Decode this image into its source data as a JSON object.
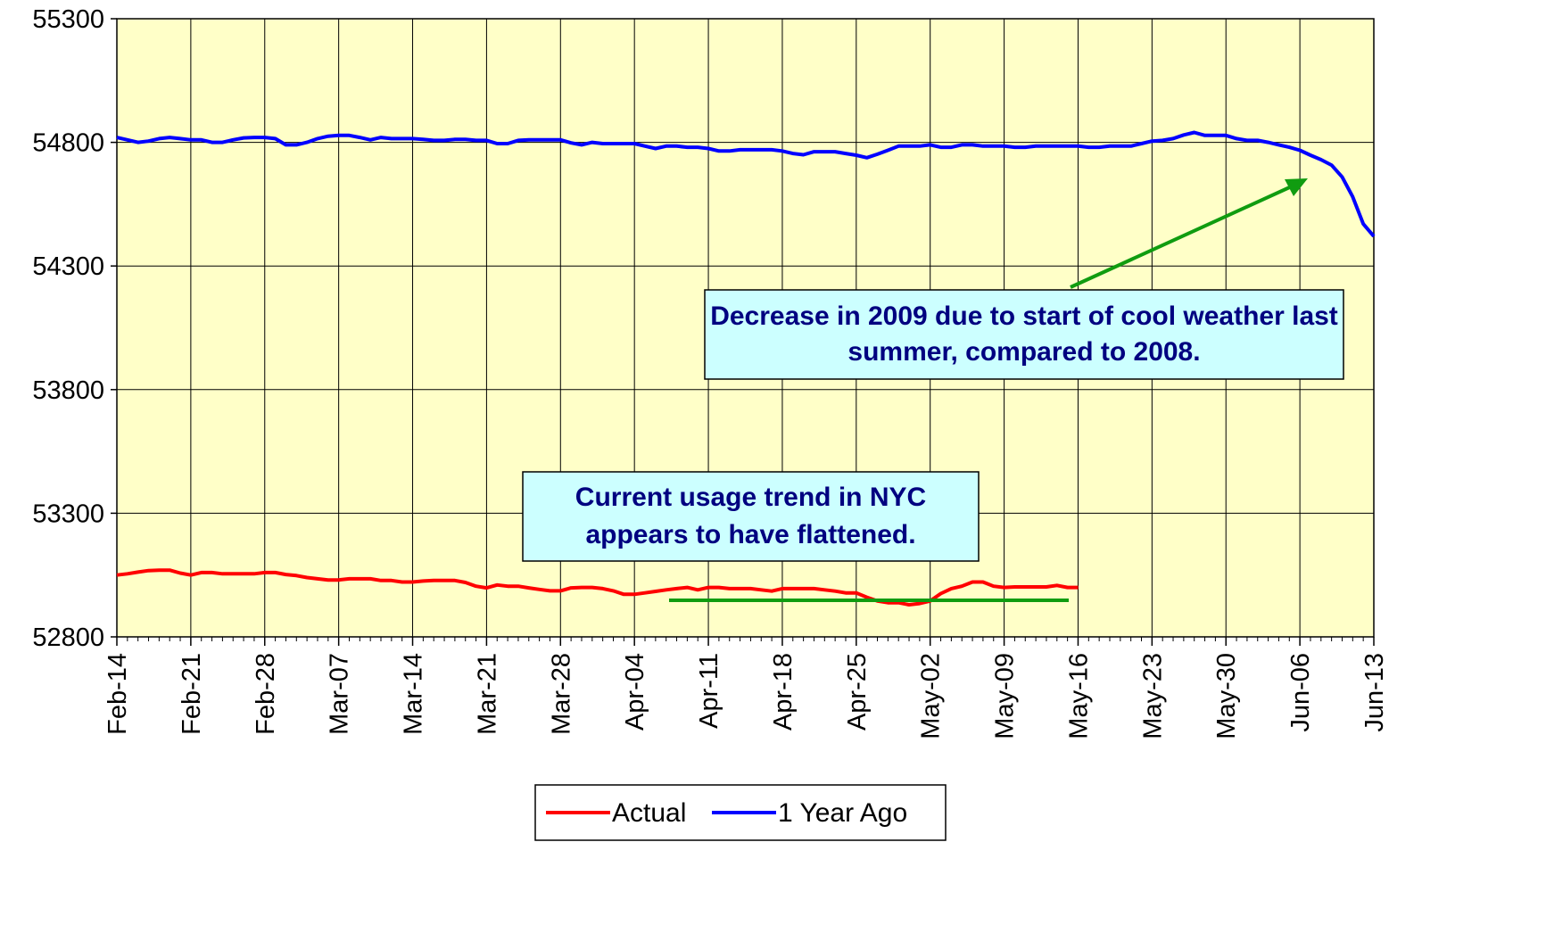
{
  "chart_data": {
    "type": "line",
    "categories": [
      "Feb-14",
      null,
      null,
      null,
      null,
      null,
      null,
      "Feb-21",
      null,
      null,
      null,
      null,
      null,
      null,
      "Feb-28",
      null,
      null,
      null,
      null,
      null,
      null,
      "Mar-07",
      null,
      null,
      null,
      null,
      null,
      null,
      "Mar-14",
      null,
      null,
      null,
      null,
      null,
      null,
      "Mar-21",
      null,
      null,
      null,
      null,
      null,
      null,
      "Mar-28",
      null,
      null,
      null,
      null,
      null,
      null,
      "Apr-04",
      null,
      null,
      null,
      null,
      null,
      null,
      "Apr-11",
      null,
      null,
      null,
      null,
      null,
      null,
      "Apr-18",
      null,
      null,
      null,
      null,
      null,
      null,
      "Apr-25",
      null,
      null,
      null,
      null,
      null,
      null,
      "May-02",
      null,
      null,
      null,
      null,
      null,
      null,
      "May-09",
      null,
      null,
      null,
      null,
      null,
      null,
      "May-16",
      null,
      null,
      null,
      null,
      null,
      null,
      "May-23",
      null,
      null,
      null,
      null,
      null,
      null,
      "May-30",
      null,
      null,
      null,
      null,
      null,
      null,
      "Jun-06",
      null,
      null,
      null,
      null,
      null,
      null,
      "Jun-13"
    ],
    "series": [
      {
        "name": "Actual",
        "color": "#ff0000",
        "values": [
          53050,
          53055,
          53062,
          53068,
          53070,
          53070,
          53058,
          53050,
          53060,
          53060,
          53055,
          53055,
          53055,
          53055,
          53060,
          53060,
          53052,
          53048,
          53040,
          53035,
          53030,
          53030,
          53035,
          53035,
          53035,
          53028,
          53028,
          53022,
          53022,
          53026,
          53028,
          53028,
          53028,
          53020,
          53005,
          52998,
          53010,
          53005,
          53005,
          52998,
          52992,
          52986,
          52986,
          52998,
          53000,
          53000,
          52995,
          52986,
          52972,
          52972,
          52978,
          52984,
          52990,
          52995,
          53000,
          52990,
          53000,
          53000,
          52995,
          52995,
          52995,
          52990,
          52985,
          52995,
          52995,
          52995,
          52995,
          52990,
          52985,
          52978,
          52978,
          52960,
          52945,
          52938,
          52938,
          52930,
          52935,
          52945,
          52975,
          52995,
          53005,
          53022,
          53022,
          53005,
          53000,
          53002,
          53002,
          53002,
          53002,
          53008,
          53000,
          53000,
          null,
          null,
          null,
          null,
          null,
          null,
          null,
          null,
          null,
          null,
          null,
          null,
          null,
          null,
          null,
          null,
          null,
          null,
          null,
          null,
          null,
          null,
          null,
          null,
          null,
          null,
          null,
          null
        ]
      },
      {
        "name": "1 Year Ago",
        "color": "#0000ff",
        "values": [
          54820,
          54810,
          54800,
          54805,
          54815,
          54820,
          54815,
          54810,
          54810,
          54800,
          54800,
          54810,
          54818,
          54820,
          54820,
          54815,
          54790,
          54790,
          54800,
          54815,
          54825,
          54828,
          54828,
          54820,
          54810,
          54820,
          54815,
          54815,
          54815,
          54812,
          54808,
          54808,
          54812,
          54812,
          54808,
          54808,
          54795,
          54795,
          54808,
          54810,
          54810,
          54810,
          54810,
          54798,
          54790,
          54800,
          54795,
          54795,
          54795,
          54795,
          54785,
          54775,
          54785,
          54785,
          54780,
          54780,
          54775,
          54765,
          54765,
          54770,
          54770,
          54770,
          54770,
          54765,
          54755,
          54750,
          54762,
          54762,
          54762,
          54755,
          54748,
          54738,
          54752,
          54768,
          54785,
          54785,
          54785,
          54790,
          54780,
          54780,
          54790,
          54790,
          54785,
          54785,
          54785,
          54780,
          54780,
          54785,
          54785,
          54785,
          54785,
          54785,
          54780,
          54780,
          54785,
          54785,
          54785,
          54795,
          54805,
          54808,
          54815,
          54830,
          54840,
          54828,
          54828,
          54828,
          54815,
          54808,
          54808,
          54800,
          54790,
          54780,
          54768,
          54748,
          54730,
          54708,
          54660,
          54580,
          54470,
          54420
        ]
      }
    ],
    "ylim": [
      52800,
      55300
    ],
    "yticks": [
      52800,
      53300,
      53800,
      54300,
      54800,
      55300
    ],
    "grid": true,
    "legend": "bottom",
    "annotations": [
      "Decrease in 2009 due to start of cool weather last summer, compared to 2008.",
      "Current usage trend in NYC appears to have flattened."
    ]
  }
}
